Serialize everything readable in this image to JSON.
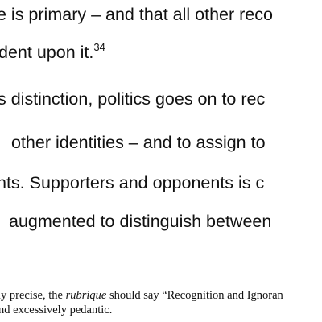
{
  "paragraph_1": {
    "line_1": "e is primary – and that all other reco",
    "line_2_text": "dent upon it.",
    "line_2_footnote_ref": "34"
  },
  "paragraph_2": {
    "line_1": "s distinction, politics goes on to rec",
    "line_2": "other identities – and to assign to",
    "line_3": "nts.  Supporters and opponents is c",
    "line_4": "augmented to distinguish between"
  },
  "footnote": {
    "line_1_before": "ly precise, the ",
    "line_1_italic": "rubrique",
    "line_1_after": " should say “Recognition and Ignoran",
    "line_2": "nd excessively pedantic."
  }
}
